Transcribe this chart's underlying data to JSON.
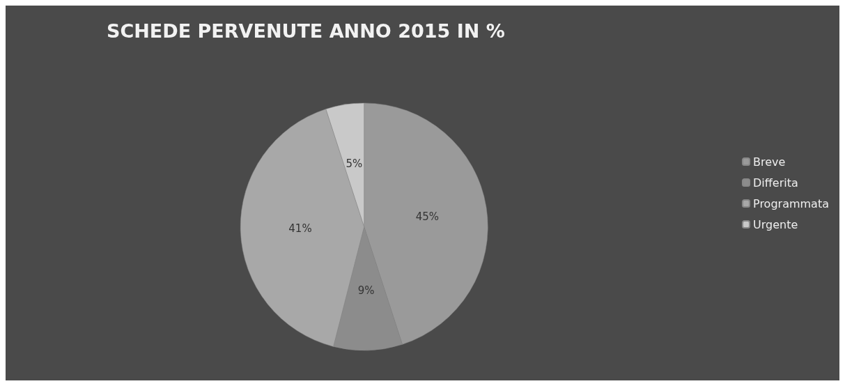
{
  "chart_data": {
    "type": "pie",
    "title": "SCHEDE PERVENUTE ANNO 2015 IN %",
    "categories": [
      "Breve",
      "Differita",
      "Programmata",
      "Urgente"
    ],
    "values": [
      45,
      9,
      41,
      5
    ],
    "value_labels": [
      "45%",
      "9%",
      "41%",
      "5%"
    ],
    "colors": [
      "#9a9a9a",
      "#8c8c8c",
      "#a8a8a8",
      "#c9c9c9"
    ],
    "legend": "right"
  }
}
